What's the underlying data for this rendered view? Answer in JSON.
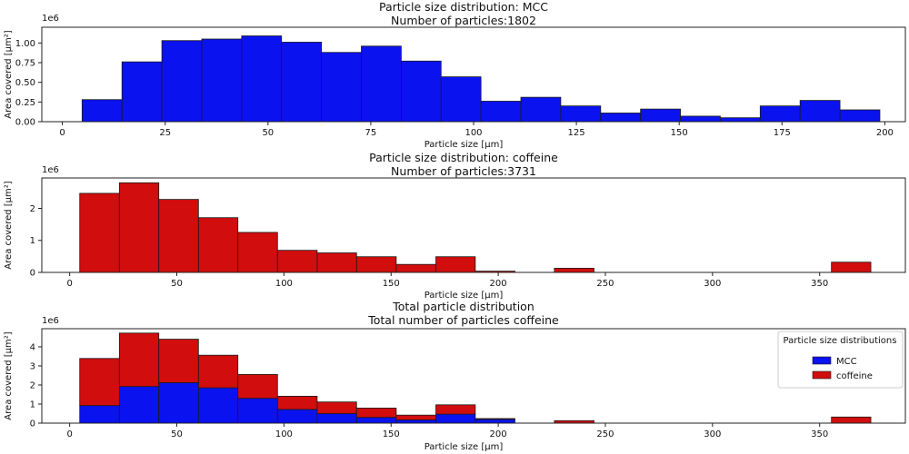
{
  "colors": {
    "mcc": "#0b12f0",
    "caffeine": "#d10d0d",
    "edge": "#1a1a1a",
    "axis": "#222222"
  },
  "chart_data": [
    {
      "type": "bar",
      "id": "p1",
      "title": "Particle size distribution: MCC",
      "subtitle": "Number of particles:1802",
      "xlabel": "Particle size [µm]",
      "ylabel": "Area covered [µm²]",
      "offset_label": "1e6",
      "xlim": [
        -5,
        205
      ],
      "ylim": [
        0,
        1.2
      ],
      "xticks": [
        0,
        25,
        50,
        75,
        100,
        125,
        150,
        175,
        200
      ],
      "yticks": [
        0.0,
        0.25,
        0.5,
        0.75,
        1.0
      ],
      "ytick_labels": [
        "0.00",
        "0.25",
        "0.50",
        "0.75",
        "1.00"
      ],
      "bins": [
        [
          4.8,
          14.5
        ],
        [
          14.5,
          24.2
        ],
        [
          24.2,
          33.9
        ],
        [
          33.9,
          43.6
        ],
        [
          43.6,
          53.3
        ],
        [
          53.3,
          63.0
        ],
        [
          63.0,
          72.7
        ],
        [
          72.7,
          82.4
        ],
        [
          82.4,
          92.1
        ],
        [
          92.1,
          101.8
        ],
        [
          101.8,
          111.5
        ],
        [
          111.5,
          121.2
        ],
        [
          121.2,
          130.9
        ],
        [
          130.9,
          140.6
        ],
        [
          140.6,
          150.3
        ],
        [
          150.3,
          160.0
        ],
        [
          160.0,
          169.7
        ],
        [
          169.7,
          179.4
        ],
        [
          179.4,
          189.1
        ],
        [
          189.1,
          198.8
        ]
      ],
      "series": [
        {
          "name": "MCC",
          "color_key": "mcc",
          "values": [
            0.28,
            0.76,
            1.03,
            1.05,
            1.09,
            1.01,
            0.88,
            0.96,
            0.77,
            0.57,
            0.26,
            0.31,
            0.2,
            0.11,
            0.16,
            0.07,
            0.05,
            0.2,
            0.27,
            0.15
          ]
        }
      ]
    },
    {
      "type": "bar",
      "id": "p2",
      "title": "Particle size distribution: coffeine",
      "subtitle": "Number of particles:3731",
      "xlabel": "Particle size [µm]",
      "ylabel": "Area covered [µm²]",
      "offset_label": "1e6",
      "xlim": [
        -13,
        390
      ],
      "ylim": [
        0,
        2.95
      ],
      "xticks": [
        0,
        50,
        100,
        150,
        200,
        250,
        300,
        350
      ],
      "yticks": [
        0,
        1,
        2
      ],
      "ytick_labels": [
        "0",
        "1",
        "2"
      ],
      "bins": [
        [
          4.7,
          23.2
        ],
        [
          23.2,
          41.6
        ],
        [
          41.6,
          60.1
        ],
        [
          60.1,
          78.5
        ],
        [
          78.5,
          97.0
        ],
        [
          97.0,
          115.5
        ],
        [
          115.5,
          133.9
        ],
        [
          133.9,
          152.4
        ],
        [
          152.4,
          170.9
        ],
        [
          170.9,
          189.3
        ],
        [
          189.3,
          207.8
        ],
        [
          207.8,
          226.2
        ],
        [
          226.2,
          244.7
        ],
        [
          244.7,
          263.2
        ],
        [
          263.2,
          281.6
        ],
        [
          281.6,
          300.1
        ],
        [
          300.1,
          318.5
        ],
        [
          318.5,
          337.0
        ],
        [
          337.0,
          355.5
        ],
        [
          355.5,
          373.9
        ]
      ],
      "series": [
        {
          "name": "coffeine",
          "color_key": "caffeine",
          "values": [
            2.47,
            2.8,
            2.28,
            1.71,
            1.25,
            0.69,
            0.61,
            0.49,
            0.25,
            0.49,
            0.04,
            0,
            0.13,
            0,
            0,
            0,
            0,
            0,
            0,
            0.32
          ]
        }
      ]
    },
    {
      "type": "bar",
      "stacked": true,
      "id": "p3",
      "title": "Total particle distribution",
      "subtitle": "Total number of particles coffeine",
      "xlabel": "Particle size [µm]",
      "ylabel": "Area covered [µm²]",
      "offset_label": "1e6",
      "xlim": [
        -13,
        390
      ],
      "ylim": [
        0,
        4.95
      ],
      "xticks": [
        0,
        50,
        100,
        150,
        200,
        250,
        300,
        350
      ],
      "yticks": [
        0,
        1,
        2,
        3,
        4
      ],
      "ytick_labels": [
        "0",
        "1",
        "2",
        "3",
        "4"
      ],
      "bins": [
        [
          4.7,
          23.2
        ],
        [
          23.2,
          41.6
        ],
        [
          41.6,
          60.1
        ],
        [
          60.1,
          78.5
        ],
        [
          78.5,
          97.0
        ],
        [
          97.0,
          115.5
        ],
        [
          115.5,
          133.9
        ],
        [
          133.9,
          152.4
        ],
        [
          152.4,
          170.9
        ],
        [
          170.9,
          189.3
        ],
        [
          189.3,
          207.8
        ],
        [
          207.8,
          226.2
        ],
        [
          226.2,
          244.7
        ],
        [
          244.7,
          263.2
        ],
        [
          263.2,
          281.6
        ],
        [
          281.6,
          300.1
        ],
        [
          300.1,
          318.5
        ],
        [
          318.5,
          337.0
        ],
        [
          337.0,
          355.5
        ],
        [
          355.5,
          373.9
        ]
      ],
      "series": [
        {
          "name": "MCC",
          "color_key": "mcc",
          "values": [
            0.92,
            1.92,
            2.12,
            1.85,
            1.3,
            0.72,
            0.5,
            0.3,
            0.17,
            0.47,
            0.2,
            0,
            0,
            0,
            0,
            0,
            0,
            0,
            0,
            0
          ]
        },
        {
          "name": "coffeine",
          "color_key": "caffeine",
          "values": [
            2.47,
            2.8,
            2.28,
            1.71,
            1.25,
            0.69,
            0.61,
            0.49,
            0.25,
            0.49,
            0.04,
            0,
            0.13,
            0,
            0,
            0,
            0,
            0,
            0,
            0.32
          ]
        }
      ],
      "legend": {
        "title": "Particle size distributions",
        "position": "right",
        "entries": [
          {
            "label": "MCC",
            "color_key": "mcc"
          },
          {
            "label": "coffeine",
            "color_key": "caffeine"
          }
        ]
      }
    }
  ]
}
